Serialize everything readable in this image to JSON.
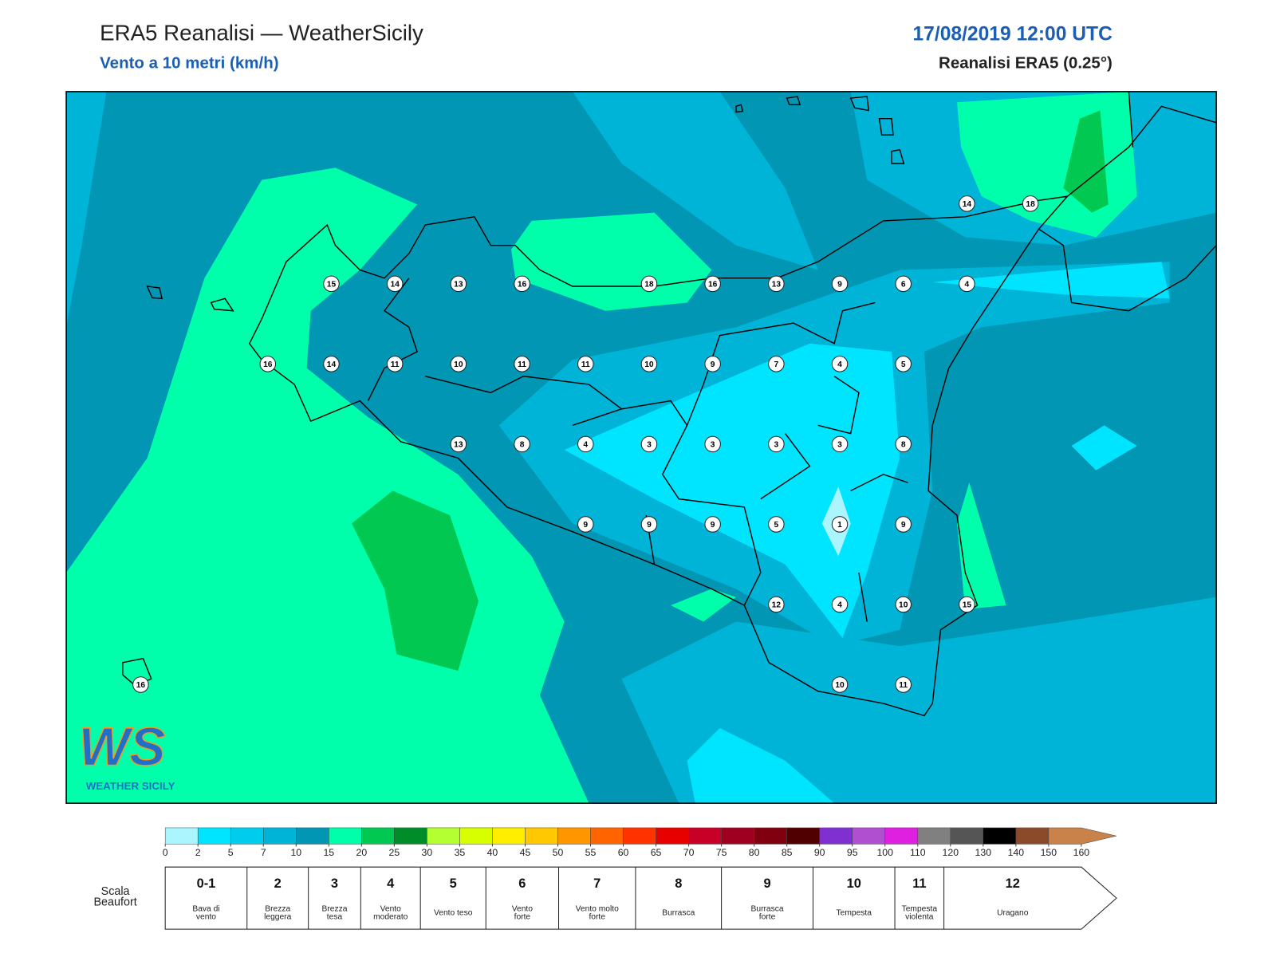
{
  "header": {
    "title": "ERA5 Reanalisi — WeatherSicily",
    "subtitle": "Vento a 10 metri (km/h)",
    "date": "17/08/2019 12:00 UTC",
    "source": "Reanalisi ERA5 (0.25°)"
  },
  "stations": {
    "rows": [
      [
        null,
        null,
        null,
        null,
        null,
        null,
        null,
        null,
        null,
        null,
        null,
        null,
        null,
        14,
        18
      ],
      [
        null,
        null,
        null,
        15,
        14,
        13,
        16,
        null,
        18,
        16,
        13,
        9,
        6,
        4,
        null
      ],
      [
        null,
        null,
        16,
        14,
        11,
        10,
        11,
        11,
        10,
        9,
        7,
        4,
        5,
        null,
        null
      ],
      [
        null,
        null,
        null,
        null,
        null,
        13,
        8,
        4,
        3,
        3,
        3,
        3,
        8,
        null,
        null
      ],
      [
        null,
        null,
        null,
        null,
        null,
        null,
        null,
        9,
        9,
        9,
        5,
        1,
        9,
        null,
        null
      ],
      [
        null,
        null,
        null,
        null,
        null,
        null,
        null,
        null,
        null,
        null,
        12,
        4,
        10,
        15,
        null
      ],
      [
        16,
        null,
        null,
        null,
        null,
        null,
        null,
        null,
        null,
        null,
        null,
        10,
        11,
        null,
        null
      ]
    ]
  },
  "logo": {
    "text": "WS",
    "subtitle": "WEATHER SICILY"
  },
  "colorbar": {
    "ticks": [
      0,
      2,
      5,
      7,
      10,
      15,
      20,
      25,
      30,
      35,
      40,
      45,
      50,
      55,
      60,
      65,
      70,
      75,
      80,
      85,
      90,
      95,
      100,
      110,
      120,
      130,
      140,
      150,
      160
    ],
    "colors": [
      "#aaf5ff",
      "#00e5ff",
      "#00ccee",
      "#00b4d8",
      "#0096b4",
      "#00ffaa",
      "#00c850",
      "#008c28",
      "#b4ff32",
      "#d8ff00",
      "#ffee00",
      "#ffc800",
      "#ff9600",
      "#ff6400",
      "#ff3200",
      "#e60000",
      "#c80028",
      "#a00020",
      "#800010",
      "#500000",
      "#8030d0",
      "#b050d0",
      "#e020e0",
      "#808080",
      "#555555",
      "#000000",
      "#8b4a2a",
      "#c8824a"
    ]
  },
  "beaufort": {
    "label": "Scala Beaufort",
    "levels": [
      {
        "force": "0-1",
        "name": "Bava di vento"
      },
      {
        "force": "2",
        "name": "Brezza leggera"
      },
      {
        "force": "3",
        "name": "Brezza tesa"
      },
      {
        "force": "4",
        "name": "Vento moderato"
      },
      {
        "force": "5",
        "name": "Vento teso"
      },
      {
        "force": "6",
        "name": "Vento forte"
      },
      {
        "force": "7",
        "name": "Vento molto forte"
      },
      {
        "force": "8",
        "name": "Burrasca"
      },
      {
        "force": "9",
        "name": "Burrasca forte"
      },
      {
        "force": "10",
        "name": "Tempesta"
      },
      {
        "force": "11",
        "name": "Tempesta violenta"
      },
      {
        "force": "12",
        "name": "Uragano"
      }
    ]
  }
}
